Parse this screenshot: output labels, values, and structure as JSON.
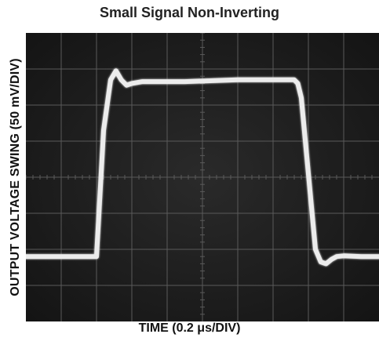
{
  "chart_data": {
    "type": "line",
    "title": "Small Signal Non-Inverting",
    "xlabel": "TIME (0.2 μs/DIV)",
    "ylabel": "OUTPUT VOLTAGE SWING (50 mV/DIV)",
    "grid": true,
    "x_divisions": 10,
    "y_divisions": 8,
    "xlim": [
      0,
      10
    ],
    "ylim": [
      0,
      8
    ],
    "units": {
      "x": "div (0.2 μs/div)",
      "y": "div (50 mV/div)"
    },
    "series": [
      {
        "x": [
          0,
          2.0,
          2.2,
          2.4,
          2.55,
          2.7,
          2.85,
          3.0,
          3.3,
          4.5,
          6.0,
          7.6,
          7.7,
          7.8,
          8.2,
          8.35,
          8.5,
          8.65,
          8.8,
          9.0,
          9.5,
          10
        ],
        "y": [
          1.8,
          1.8,
          5.3,
          6.7,
          6.95,
          6.7,
          6.55,
          6.6,
          6.65,
          6.65,
          6.7,
          6.7,
          6.6,
          6.2,
          2.0,
          1.65,
          1.6,
          1.72,
          1.8,
          1.82,
          1.8,
          1.8
        ]
      }
    ],
    "colors": {
      "screen": "#1a1a1a",
      "grid": "#5a5a5a",
      "trace": "#ececec"
    }
  }
}
